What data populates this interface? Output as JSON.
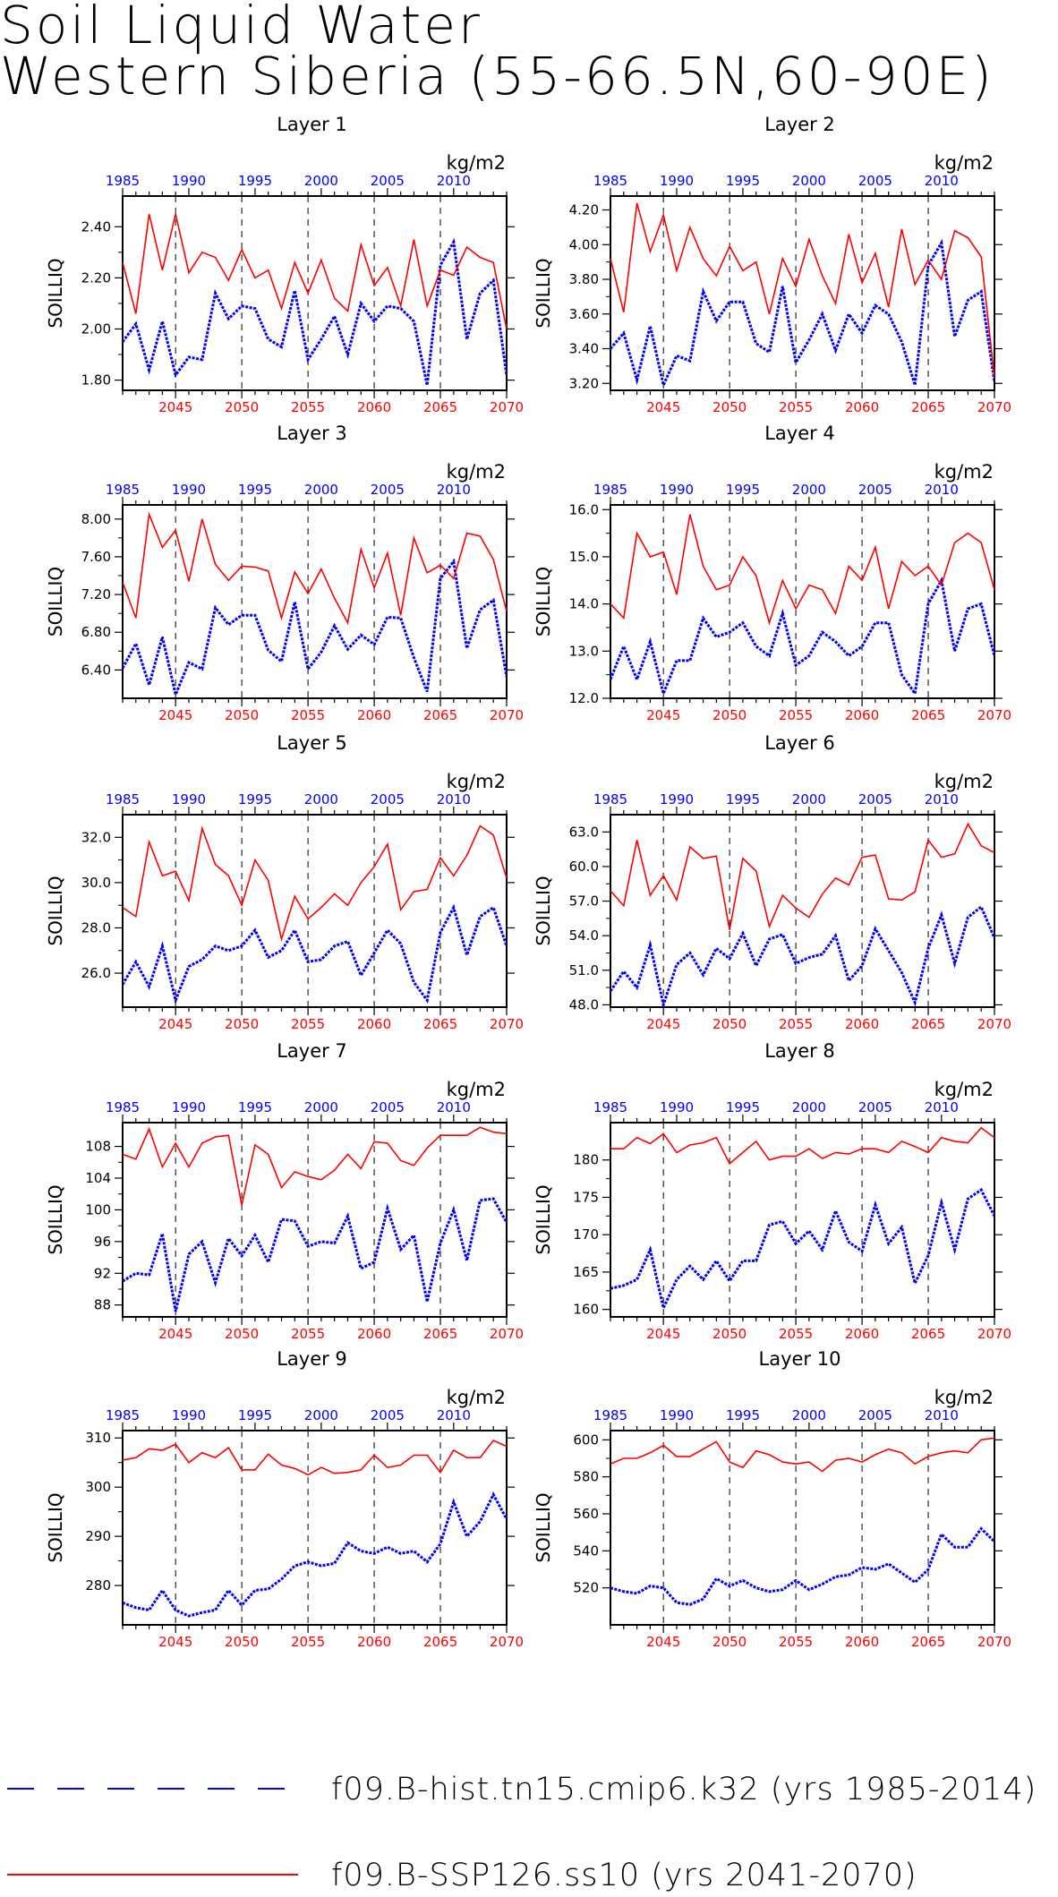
{
  "title": {
    "line1": "Soil Liquid Water",
    "line2": "Western Siberia (55-66.5N,60-90E)"
  },
  "colors": {
    "hist": "#0000ff",
    "ssp": "#ff0000",
    "axis": "#000000"
  },
  "legend": [
    {
      "label": "f09.B-hist.tn15.cmip6.k32 (yrs 1985-2014)",
      "color": "#0000ff",
      "style": "dashed"
    },
    {
      "label": "f09.B-SSP126.ss10 (yrs 2041-2070)",
      "color": "#ff0000",
      "style": "solid"
    }
  ],
  "shared": {
    "ylabel": "SOILLIQ",
    "units": "kg/m2",
    "top_ticks": [
      "1985",
      "1990",
      "1995",
      "2000",
      "2005",
      "2010"
    ],
    "top_years": [
      1985,
      1990,
      1995,
      2000,
      2005,
      2010
    ],
    "bottom_ticks": [
      "2045",
      "2050",
      "2055",
      "2060",
      "2065",
      "2070"
    ],
    "bottom_years": [
      2045,
      2050,
      2055,
      2060,
      2065,
      2070
    ],
    "ssp_years": [
      2041,
      2070
    ],
    "hist_years": [
      1985,
      2014
    ]
  },
  "chart_data": [
    {
      "type": "line",
      "title": "Layer 1",
      "ylabel": "SOILLIQ",
      "ylim": [
        1.76,
        2.52
      ],
      "yticks": [
        "1.80",
        "2.00",
        "2.20",
        "2.40"
      ],
      "ytick_values": [
        1.8,
        2.0,
        2.2,
        2.4
      ],
      "series": [
        {
          "name": "f09.B-hist.tn15.cmip6.k32",
          "x_start": 1985,
          "values": [
            1.95,
            2.02,
            1.84,
            2.03,
            1.82,
            1.89,
            1.88,
            2.14,
            2.04,
            2.09,
            2.08,
            1.96,
            1.93,
            2.15,
            1.88,
            1.96,
            2.05,
            1.9,
            2.1,
            2.03,
            2.09,
            2.08,
            2.03,
            1.78,
            2.25,
            2.34,
            1.96,
            2.14,
            2.19,
            1.82
          ]
        },
        {
          "name": "f09.B-SSP126.ss10",
          "x_start": 2041,
          "values": [
            2.26,
            2.06,
            2.45,
            2.23,
            2.45,
            2.22,
            2.3,
            2.28,
            2.19,
            2.31,
            2.2,
            2.23,
            2.08,
            2.26,
            2.14,
            2.27,
            2.12,
            2.07,
            2.33,
            2.17,
            2.24,
            2.09,
            2.35,
            2.09,
            2.23,
            2.21,
            2.32,
            2.28,
            2.26,
            2.0
          ]
        }
      ]
    },
    {
      "type": "line",
      "title": "Layer 2",
      "ylabel": "SOILLIQ",
      "ylim": [
        3.16,
        4.28
      ],
      "yticks": [
        "3.20",
        "3.40",
        "3.60",
        "3.80",
        "4.00",
        "4.20"
      ],
      "ytick_values": [
        3.2,
        3.4,
        3.6,
        3.8,
        4.0,
        4.2
      ],
      "series": [
        {
          "name": "f09.B-hist.tn15.cmip6.k32",
          "x_start": 1985,
          "values": [
            3.4,
            3.49,
            3.22,
            3.53,
            3.19,
            3.36,
            3.33,
            3.73,
            3.56,
            3.67,
            3.67,
            3.43,
            3.38,
            3.76,
            3.32,
            3.45,
            3.6,
            3.39,
            3.6,
            3.49,
            3.65,
            3.6,
            3.44,
            3.19,
            3.88,
            4.01,
            3.47,
            3.68,
            3.73,
            3.21
          ]
        },
        {
          "name": "f09.B-SSP126.ss10",
          "x_start": 2041,
          "values": [
            3.92,
            3.61,
            4.24,
            3.96,
            4.17,
            3.85,
            4.1,
            3.92,
            3.82,
            3.99,
            3.85,
            3.9,
            3.6,
            3.92,
            3.76,
            4.03,
            3.82,
            3.66,
            4.06,
            3.78,
            3.95,
            3.64,
            4.09,
            3.77,
            3.91,
            3.8,
            4.08,
            4.04,
            3.93,
            3.23
          ]
        }
      ]
    },
    {
      "type": "line",
      "title": "Layer 3",
      "ylabel": "SOILLIQ",
      "ylim": [
        6.1,
        8.15
      ],
      "yticks": [
        "6.40",
        "6.80",
        "7.20",
        "7.60",
        "8.00"
      ],
      "ytick_values": [
        6.4,
        6.8,
        7.2,
        7.6,
        8.0
      ],
      "series": [
        {
          "name": "f09.B-hist.tn15.cmip6.k32",
          "x_start": 1985,
          "values": [
            6.42,
            6.68,
            6.24,
            6.75,
            6.14,
            6.48,
            6.41,
            7.06,
            6.88,
            6.98,
            6.98,
            6.61,
            6.49,
            7.12,
            6.41,
            6.59,
            6.87,
            6.62,
            6.77,
            6.67,
            6.96,
            6.95,
            6.53,
            6.17,
            7.37,
            7.55,
            6.63,
            7.04,
            7.14,
            6.33
          ]
        },
        {
          "name": "f09.B-SSP126.ss10",
          "x_start": 2041,
          "values": [
            7.33,
            6.95,
            8.05,
            7.7,
            7.88,
            7.34,
            8.0,
            7.52,
            7.35,
            7.5,
            7.49,
            7.45,
            6.95,
            7.44,
            7.21,
            7.47,
            7.16,
            6.9,
            7.68,
            7.27,
            7.64,
            6.98,
            7.8,
            7.43,
            7.51,
            7.37,
            7.85,
            7.82,
            7.57,
            7.02
          ]
        }
      ]
    },
    {
      "type": "line",
      "title": "Layer 4",
      "ylabel": "SOILLIQ",
      "ylim": [
        12.0,
        16.1
      ],
      "yticks": [
        "12.0",
        "13.0",
        "14.0",
        "15.0",
        "16.0"
      ],
      "ytick_values": [
        12.0,
        13.0,
        14.0,
        15.0,
        16.0
      ],
      "series": [
        {
          "name": "f09.B-hist.tn15.cmip6.k32",
          "x_start": 1985,
          "values": [
            12.4,
            13.1,
            12.4,
            13.2,
            12.1,
            12.8,
            12.8,
            13.7,
            13.3,
            13.4,
            13.6,
            13.1,
            12.9,
            13.8,
            12.7,
            12.9,
            13.4,
            13.2,
            12.9,
            13.1,
            13.6,
            13.6,
            12.5,
            12.1,
            14.0,
            14.5,
            13.0,
            13.9,
            14.0,
            12.9
          ]
        },
        {
          "name": "f09.B-SSP126.ss10",
          "x_start": 2041,
          "values": [
            14.0,
            13.7,
            15.5,
            15.0,
            15.1,
            14.2,
            15.9,
            14.8,
            14.3,
            14.4,
            15.0,
            14.6,
            13.6,
            14.5,
            13.9,
            14.4,
            14.3,
            13.8,
            14.8,
            14.5,
            15.2,
            13.9,
            14.9,
            14.6,
            14.8,
            14.4,
            15.3,
            15.5,
            15.3,
            14.3
          ]
        }
      ]
    },
    {
      "type": "line",
      "title": "Layer 5",
      "ylabel": "SOILLIQ",
      "ylim": [
        24.5,
        33.0
      ],
      "yticks": [
        "26.0",
        "28.0",
        "30.0",
        "32.0"
      ],
      "ytick_values": [
        26.0,
        28.0,
        30.0,
        32.0
      ],
      "series": [
        {
          "name": "f09.B-hist.tn15.cmip6.k32",
          "x_start": 1985,
          "values": [
            25.5,
            26.5,
            25.4,
            27.2,
            24.8,
            26.3,
            26.6,
            27.2,
            27.0,
            27.2,
            27.9,
            26.7,
            27.0,
            27.9,
            26.5,
            26.6,
            27.2,
            27.4,
            25.9,
            26.9,
            27.9,
            27.3,
            25.6,
            24.8,
            27.8,
            28.9,
            26.8,
            28.5,
            28.9,
            27.2
          ]
        },
        {
          "name": "f09.B-SSP126.ss10",
          "x_start": 2041,
          "values": [
            28.9,
            28.5,
            31.8,
            30.3,
            30.5,
            29.2,
            32.4,
            30.8,
            30.3,
            29.0,
            31.0,
            30.1,
            27.5,
            29.4,
            28.4,
            28.9,
            29.5,
            29.0,
            30.0,
            30.7,
            31.7,
            28.8,
            29.6,
            29.7,
            31.1,
            30.3,
            31.2,
            32.5,
            32.1,
            30.2
          ]
        }
      ]
    },
    {
      "type": "line",
      "title": "Layer 6",
      "ylabel": "SOILLIQ",
      "ylim": [
        47.8,
        64.5
      ],
      "yticks": [
        "48.0",
        "51.0",
        "54.0",
        "57.0",
        "60.0",
        "63.0"
      ],
      "ytick_values": [
        48.0,
        51.0,
        54.0,
        57.0,
        60.0,
        63.0
      ],
      "series": [
        {
          "name": "f09.B-hist.tn15.cmip6.k32",
          "x_start": 1985,
          "values": [
            49.2,
            50.9,
            49.5,
            53.2,
            48.0,
            51.5,
            52.5,
            50.6,
            52.9,
            52.0,
            54.2,
            51.4,
            53.7,
            54.1,
            51.6,
            52.1,
            52.4,
            54.0,
            50.1,
            51.4,
            54.6,
            52.7,
            50.8,
            48.2,
            52.9,
            55.8,
            51.6,
            55.6,
            56.5,
            53.8
          ]
        },
        {
          "name": "f09.B-SSP126.ss10",
          "x_start": 2041,
          "values": [
            57.9,
            56.6,
            62.3,
            57.5,
            59.2,
            57.1,
            61.7,
            60.7,
            60.9,
            54.5,
            60.7,
            59.6,
            54.8,
            57.5,
            56.4,
            55.6,
            57.6,
            59.0,
            58.4,
            60.8,
            61.0,
            57.2,
            57.1,
            57.8,
            62.3,
            60.8,
            61.1,
            63.7,
            61.8,
            61.2
          ]
        }
      ]
    },
    {
      "type": "line",
      "title": "Layer 7",
      "ylabel": "SOILLIQ",
      "ylim": [
        86.5,
        111.0
      ],
      "yticks": [
        "88",
        "92",
        "96",
        "100",
        "104",
        "108"
      ],
      "ytick_values": [
        88,
        92,
        96,
        100,
        104,
        108
      ],
      "series": [
        {
          "name": "f09.B-hist.tn15.cmip6.k32",
          "x_start": 1985,
          "values": [
            91.0,
            92.0,
            91.8,
            97.0,
            87.2,
            94.4,
            96.0,
            90.8,
            96.4,
            94.2,
            96.8,
            93.4,
            98.8,
            98.6,
            95.4,
            96.0,
            95.8,
            99.2,
            92.6,
            93.4,
            100.2,
            95.0,
            96.8,
            88.4,
            95.8,
            100.0,
            93.6,
            101.2,
            101.4,
            98.4
          ]
        },
        {
          "name": "f09.B-SSP126.ss10",
          "x_start": 2041,
          "values": [
            107.0,
            106.4,
            110.2,
            105.4,
            108.4,
            105.4,
            108.4,
            109.2,
            109.4,
            100.6,
            108.2,
            107.0,
            102.8,
            104.8,
            104.2,
            103.8,
            105.0,
            107.0,
            105.2,
            108.6,
            108.4,
            106.2,
            105.6,
            107.8,
            109.4,
            109.4,
            109.4,
            110.4,
            109.8,
            109.6
          ]
        }
      ]
    },
    {
      "type": "line",
      "title": "Layer 8",
      "ylabel": "SOILLIQ",
      "ylim": [
        159.0,
        185.0
      ],
      "yticks": [
        "160",
        "165",
        "170",
        "175",
        "180"
      ],
      "ytick_values": [
        160,
        165,
        170,
        175,
        180
      ],
      "series": [
        {
          "name": "f09.B-hist.tn15.cmip6.k32",
          "x_start": 1985,
          "values": [
            162.8,
            163.2,
            164.0,
            168.0,
            160.2,
            164.0,
            165.8,
            164.0,
            166.5,
            163.8,
            166.5,
            166.5,
            171.3,
            171.8,
            168.8,
            170.5,
            168.0,
            173.2,
            169.0,
            167.8,
            174.0,
            168.8,
            171.0,
            163.5,
            167.2,
            174.3,
            168.0,
            174.8,
            176.0,
            172.5
          ]
        },
        {
          "name": "f09.B-SSP126.ss10",
          "x_start": 2041,
          "values": [
            181.5,
            181.5,
            183.0,
            182.2,
            183.5,
            181.0,
            182.0,
            182.3,
            183.0,
            179.5,
            181.0,
            182.5,
            180.0,
            180.5,
            180.5,
            181.5,
            180.2,
            181.0,
            180.8,
            181.5,
            181.5,
            181.0,
            182.5,
            181.8,
            181.0,
            183.0,
            182.5,
            182.3,
            184.3,
            183.0
          ]
        }
      ]
    },
    {
      "type": "line",
      "title": "Layer 9",
      "ylabel": "SOILLIQ",
      "ylim": [
        272.0,
        311.5
      ],
      "yticks": [
        "280",
        "290",
        "300",
        "310"
      ],
      "ytick_values": [
        280,
        290,
        300,
        310
      ],
      "series": [
        {
          "name": "f09.B-hist.tn15.cmip6.k32",
          "x_start": 1985,
          "values": [
            276.5,
            275.5,
            275.0,
            279.0,
            275.0,
            273.8,
            274.5,
            275.0,
            279.0,
            276.0,
            279.0,
            279.3,
            281.3,
            284.0,
            284.8,
            284.0,
            284.5,
            288.7,
            287.0,
            286.5,
            287.8,
            286.5,
            287.0,
            284.8,
            288.5,
            297.0,
            290.0,
            293.0,
            298.5,
            293.5
          ]
        },
        {
          "name": "f09.B-SSP126.ss10",
          "x_start": 2041,
          "values": [
            305.5,
            306.0,
            307.8,
            307.5,
            308.7,
            305.0,
            307.0,
            306.0,
            308.0,
            303.5,
            303.5,
            306.7,
            304.5,
            303.8,
            302.5,
            304.0,
            302.8,
            303.0,
            303.5,
            306.5,
            304.0,
            304.5,
            306.5,
            306.5,
            303.0,
            307.5,
            306.0,
            306.0,
            309.5,
            308.3
          ]
        }
      ]
    },
    {
      "type": "line",
      "title": "Layer 10",
      "ylabel": "SOILLIQ",
      "ylim": [
        500.0,
        605.0
      ],
      "yticks": [
        "520",
        "540",
        "560",
        "580",
        "600"
      ],
      "ytick_values": [
        520,
        540,
        560,
        580,
        600
      ],
      "series": [
        {
          "name": "f09.B-hist.tn15.cmip6.k32",
          "x_start": 1985,
          "values": [
            520.0,
            518.0,
            517.0,
            521.0,
            520.0,
            512.0,
            511.0,
            514.0,
            525.0,
            521.0,
            524.0,
            520.0,
            518.0,
            519.0,
            524.0,
            519.0,
            522.0,
            526.0,
            527.0,
            531.0,
            530.0,
            533.0,
            528.0,
            523.0,
            530.0,
            549.0,
            542.0,
            542.0,
            552.0,
            545.0
          ]
        },
        {
          "name": "f09.B-SSP126.ss10",
          "x_start": 2041,
          "values": [
            587.0,
            590.0,
            590.0,
            593.0,
            597.0,
            591.0,
            591.0,
            595.0,
            599.0,
            588.0,
            585.0,
            594.0,
            592.0,
            588.0,
            587.0,
            588.0,
            583.0,
            589.0,
            590.0,
            588.0,
            592.0,
            595.0,
            593.0,
            587.0,
            591.0,
            593.0,
            594.0,
            593.0,
            600.0,
            601.0
          ]
        }
      ]
    }
  ]
}
